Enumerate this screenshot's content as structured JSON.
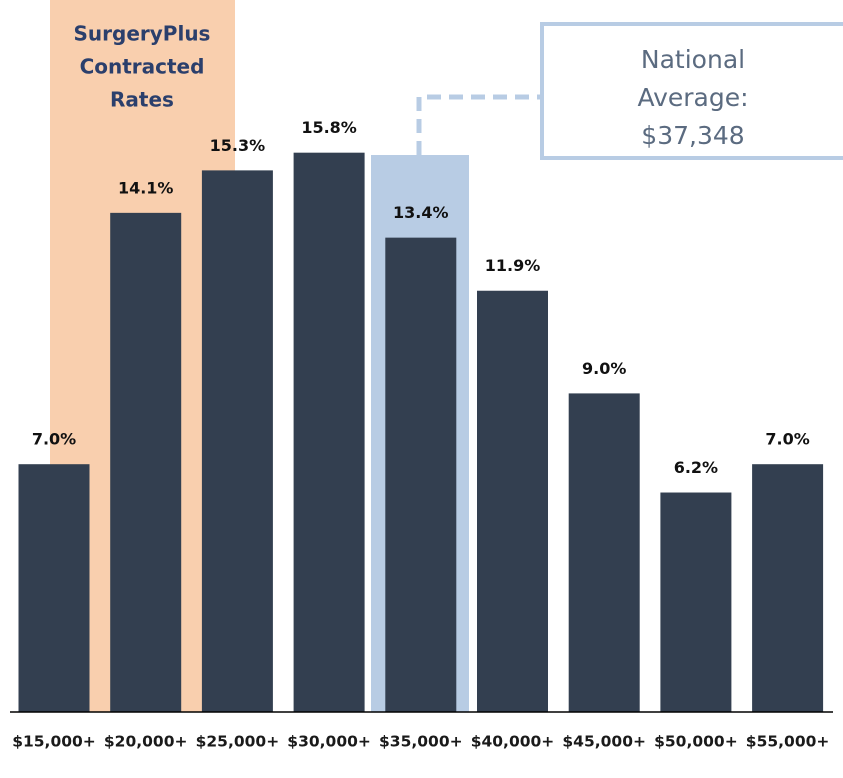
{
  "chart_data": {
    "type": "bar",
    "categories": [
      "$15,000+",
      "$20,000+",
      "$25,000+",
      "$30,000+",
      "$35,000+",
      "$40,000+",
      "$45,000+",
      "$50,000+",
      "$55,000+"
    ],
    "values": [
      7.0,
      14.1,
      15.3,
      15.8,
      13.4,
      11.9,
      9.0,
      6.2,
      7.0
    ],
    "value_labels": [
      "7.0%",
      "14.1%",
      "15.3%",
      "15.8%",
      "13.4%",
      "11.9%",
      "9.0%",
      "6.2%",
      "7.0%"
    ],
    "color": "#333f50",
    "ylim": [
      0,
      20
    ],
    "annotations": [
      {
        "lines": [
          "SurgeryPlus",
          "Contracted",
          "Rates"
        ]
      },
      {
        "lines": [
          "National",
          "Average:",
          "$37,348"
        ]
      }
    ]
  }
}
